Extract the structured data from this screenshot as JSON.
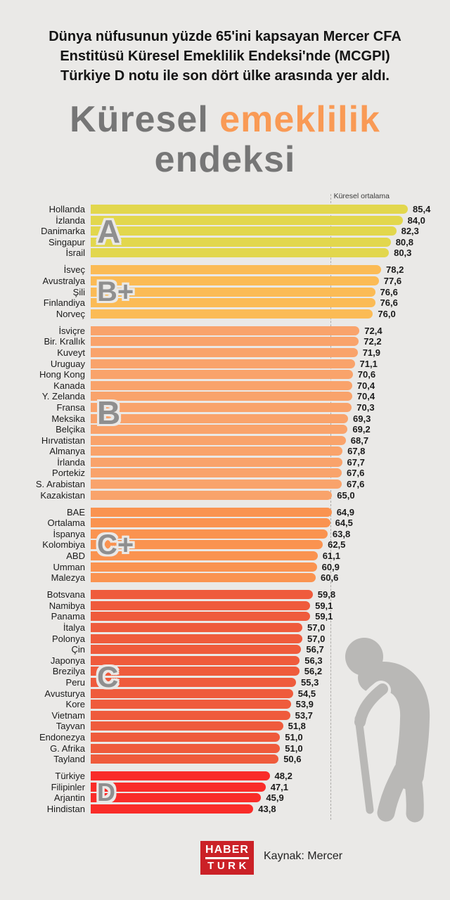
{
  "header": {
    "lines": [
      "Dünya nüfusunun yüzde 65'ini kapsayan Mercer CFA",
      "Enstitüsü Küresel Emeklilik Endeksi'nde (MCGPI)",
      "Türkiye D notu ile son dört ülke arasında yer aldı."
    ]
  },
  "title": {
    "word1": "Küresel",
    "word2": "emeklilik",
    "word3": "endeksi",
    "accent_color": "#f99a55",
    "gray_color": "#767676"
  },
  "chart_data": {
    "type": "bar",
    "orientation": "horizontal",
    "title": "Küresel emeklilik endeksi",
    "average_label": "Küresel ortalama",
    "average_value": 64.5,
    "max_value": 85.4,
    "xlim": [
      0,
      85.4
    ],
    "value_decimal_separator": ",",
    "groups": [
      {
        "grade": "A",
        "color": "#e2d74d",
        "rows": [
          [
            "Hollanda",
            "85,4"
          ],
          [
            "İzlanda",
            "84,0"
          ],
          [
            "Danimarka",
            "82,3"
          ],
          [
            "Singapur",
            "80,8"
          ],
          [
            "İsrail",
            "80,3"
          ]
        ]
      },
      {
        "grade": "B+",
        "color": "#fbbb55",
        "rows": [
          [
            "İsveç",
            "78,2"
          ],
          [
            "Avustralya",
            "77,6"
          ],
          [
            "Şili",
            "76,6"
          ],
          [
            "Finlandiya",
            "76,6"
          ],
          [
            "Norveç",
            "76,0"
          ]
        ]
      },
      {
        "grade": "B",
        "color": "#f9a36b",
        "rows": [
          [
            "İsviçre",
            "72,4"
          ],
          [
            "Bir. Krallık",
            "72,2"
          ],
          [
            "Kuveyt",
            "71,9"
          ],
          [
            "Uruguay",
            "71,1"
          ],
          [
            "Hong Kong",
            "70,6"
          ],
          [
            "Kanada",
            "70,4"
          ],
          [
            "Y. Zelanda",
            "70,4"
          ],
          [
            "Fransa",
            "70,3"
          ],
          [
            "Meksika",
            "69,3"
          ],
          [
            "Belçika",
            "69,2"
          ],
          [
            "Hırvatistan",
            "68,7"
          ],
          [
            "Almanya",
            "67,8"
          ],
          [
            "İrlanda",
            "67,7"
          ],
          [
            "Portekiz",
            "67,6"
          ],
          [
            "S. Arabistan",
            "67,6"
          ],
          [
            "Kazakistan",
            "65,0"
          ]
        ]
      },
      {
        "grade": "C+",
        "color": "#fa9350",
        "rows": [
          [
            "BAE",
            "64,9"
          ],
          [
            "Ortalama",
            "64,5"
          ],
          [
            "İspanya",
            "63,8"
          ],
          [
            "Kolombiya",
            "62,5"
          ],
          [
            "ABD",
            "61,1"
          ],
          [
            "Umman",
            "60,9"
          ],
          [
            "Malezya",
            "60,6"
          ]
        ]
      },
      {
        "grade": "C",
        "color": "#ef5b3c",
        "rows": [
          [
            "Botsvana",
            "59,8"
          ],
          [
            "Namibya",
            "59,1"
          ],
          [
            "Panama",
            "59,1"
          ],
          [
            "İtalya",
            "57,0"
          ],
          [
            "Polonya",
            "57,0"
          ],
          [
            "Çin",
            "56,7"
          ],
          [
            "Japonya",
            "56,3"
          ],
          [
            "Brezilya",
            "56,2"
          ],
          [
            "Peru",
            "55,3"
          ],
          [
            "Avusturya",
            "54,5"
          ],
          [
            "Kore",
            "53,9"
          ],
          [
            "Vietnam",
            "53,7"
          ],
          [
            "Tayvan",
            "51,8"
          ],
          [
            "Endonezya",
            "51,0"
          ],
          [
            "G. Afrika",
            "51,0"
          ],
          [
            "Tayland",
            "50,6"
          ]
        ]
      },
      {
        "grade": "D",
        "color": "#f92c29",
        "rows": [
          [
            "Türkiye",
            "48,2"
          ],
          [
            "Filipinler",
            "47,1"
          ],
          [
            "Arjantin",
            "45,9"
          ],
          [
            "Hindistan",
            "43,8"
          ]
        ]
      }
    ]
  },
  "icons": {
    "elderly_person_color": "#b9b8b6"
  },
  "footer": {
    "logo_top": "HABER",
    "logo_bottom": "TURK",
    "logo_color": "#cb2127",
    "source": "Kaynak: Mercer"
  }
}
